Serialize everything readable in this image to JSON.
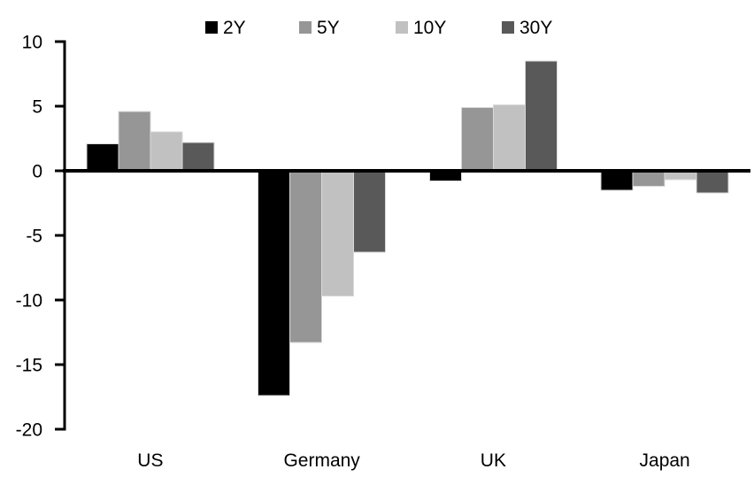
{
  "chart_data": {
    "type": "bar",
    "title": "",
    "xlabel": "",
    "ylabel": "",
    "categories": [
      "US",
      "Germany",
      "UK",
      "Japan"
    ],
    "series": [
      {
        "name": "2Y",
        "color": "#000000",
        "values": [
          2.1,
          -17.4,
          -0.8,
          -1.5
        ]
      },
      {
        "name": "5Y",
        "color": "#969696",
        "values": [
          4.6,
          -13.3,
          4.9,
          -1.2
        ]
      },
      {
        "name": "10Y",
        "color": "#C1C1C1",
        "values": [
          3.0,
          -9.7,
          5.1,
          -0.7
        ]
      },
      {
        "name": "30Y",
        "color": "#595959",
        "values": [
          2.2,
          -6.3,
          8.5,
          -1.7
        ]
      }
    ],
    "ylim": [
      -20,
      10
    ],
    "yticks": [
      10,
      5,
      0,
      -5,
      -10,
      -15,
      -20
    ],
    "grid": false,
    "legend_position": "top",
    "axis_color": "#000000",
    "background": "#ffffff",
    "bar_outline": "#d9d9d9"
  }
}
